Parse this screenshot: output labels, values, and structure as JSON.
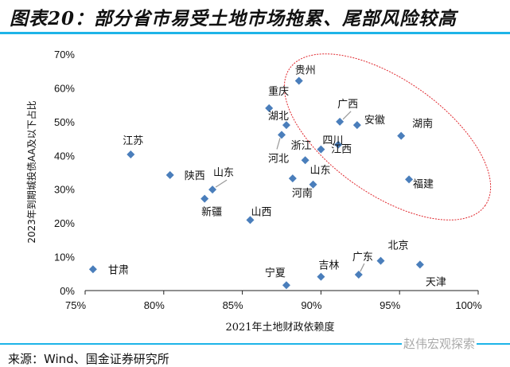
{
  "title": "图表20：部分省市易受土地市场拖累、尾部风险较高",
  "source": "来源：Wind、国金证券研究所",
  "watermark": "赵伟宏观探索",
  "chart_data": {
    "type": "scatter",
    "title": "",
    "xlabel": "2021年土地财政依赖度",
    "ylabel": "2023年到期城投债AA及以下占比",
    "xlim": [
      75,
      100
    ],
    "ylim": [
      0,
      70
    ],
    "xticks": [
      "75%",
      "80%",
      "85%",
      "90%",
      "95%",
      "100%"
    ],
    "yticks": [
      "0%",
      "10%",
      "20%",
      "30%",
      "40%",
      "50%",
      "60%",
      "70%"
    ],
    "grid": false,
    "marker_color": "#4a7ebb",
    "highlight_ellipse_color": "#e0282e",
    "points": [
      {
        "label": "贵州",
        "x": 88.6,
        "y": 62.1
      },
      {
        "label": "重庆",
        "x": 86.7,
        "y": 54.0
      },
      {
        "label": "湖北",
        "x": 87.8,
        "y": 49.0
      },
      {
        "label": "河北",
        "x": 87.5,
        "y": 46.1
      },
      {
        "label": "广西",
        "x": 91.2,
        "y": 50.0
      },
      {
        "label": "安徽",
        "x": 92.3,
        "y": 49.0
      },
      {
        "label": "湖南",
        "x": 95.1,
        "y": 45.8
      },
      {
        "label": "四川",
        "x": 90.0,
        "y": 41.8
      },
      {
        "label": "江西",
        "x": 91.1,
        "y": 43.2
      },
      {
        "label": "浙江",
        "x": 89.0,
        "y": 38.6
      },
      {
        "label": "山东",
        "x": 89.5,
        "y": 31.4
      },
      {
        "label": "河南",
        "x": 88.2,
        "y": 33.2
      },
      {
        "label": "福建",
        "x": 95.6,
        "y": 32.9
      },
      {
        "label": "江苏",
        "x": 77.9,
        "y": 40.3
      },
      {
        "label": "陕西",
        "x": 80.4,
        "y": 34.2
      },
      {
        "label": "山东",
        "x": 83.1,
        "y": 29.9
      },
      {
        "label": "新疆",
        "x": 82.6,
        "y": 27.2
      },
      {
        "label": "山西",
        "x": 85.5,
        "y": 20.9
      },
      {
        "label": "甘肃",
        "x": 75.5,
        "y": 6.3
      },
      {
        "label": "宁夏",
        "x": 87.8,
        "y": 1.6
      },
      {
        "label": "吉林",
        "x": 90.0,
        "y": 4.1
      },
      {
        "label": "广东",
        "x": 92.4,
        "y": 4.7
      },
      {
        "label": "北京",
        "x": 93.8,
        "y": 8.8
      },
      {
        "label": "天津",
        "x": 96.3,
        "y": 7.7
      }
    ]
  }
}
